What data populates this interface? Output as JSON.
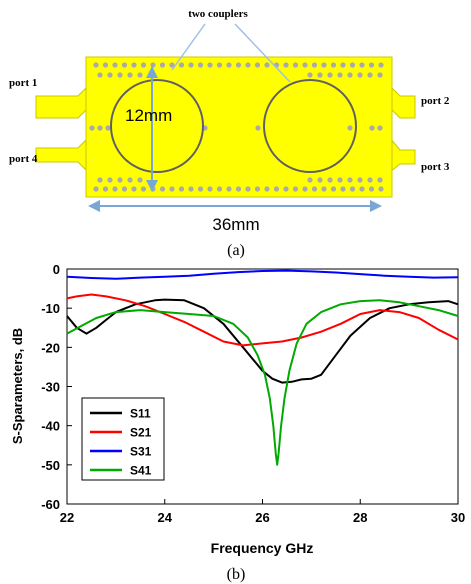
{
  "panel_a": {
    "caption": "(a)",
    "callout_label": "two couplers",
    "port_labels": {
      "port1": "port 1",
      "port2": "port 2",
      "port3": "port 3",
      "port4": "port 4"
    },
    "dim_diameter": "12mm",
    "dim_length": "36mm",
    "colors": {
      "board": "#ffff00",
      "board_edge": "#c8c800",
      "via": "#a9a9a9",
      "circle": "#606060",
      "arrow": "#7aa6d6",
      "callout": "#9fbfe6"
    }
  },
  "panel_b": {
    "caption": "(b)"
  },
  "chart_data": {
    "type": "line",
    "xlabel": "Frequency GHz",
    "ylabel": "S-Sparameters, dB",
    "xlim": [
      22,
      30
    ],
    "ylim": [
      -60,
      0
    ],
    "xticks": [
      22,
      24,
      26,
      28,
      30
    ],
    "yticks": [
      0,
      -10,
      -20,
      -30,
      -40,
      -50,
      -60
    ],
    "grid": false,
    "legend_position": "bottom-left",
    "series": [
      {
        "name": "S11",
        "color": "#000000",
        "x": [
          22,
          22.2,
          22.4,
          22.6,
          22.8,
          23,
          23.4,
          23.8,
          24,
          24.4,
          24.8,
          25.2,
          25.6,
          26,
          26.2,
          26.4,
          26.6,
          26.8,
          27,
          27.2,
          27.5,
          27.8,
          28.2,
          28.6,
          29,
          29.4,
          29.8,
          30
        ],
        "y": [
          -12,
          -15,
          -16.5,
          -15,
          -13,
          -11,
          -9,
          -8,
          -7.8,
          -8,
          -10,
          -14,
          -20,
          -26,
          -28,
          -29,
          -28.8,
          -28.2,
          -28,
          -27,
          -22,
          -17,
          -12.5,
          -10,
          -9,
          -8.5,
          -8.2,
          -9
        ]
      },
      {
        "name": "S21",
        "color": "#ff0000",
        "x": [
          22,
          22.2,
          22.5,
          22.8,
          23.2,
          23.6,
          24,
          24.4,
          24.8,
          25.2,
          25.6,
          26,
          26.4,
          26.8,
          27.2,
          27.6,
          28,
          28.4,
          28.8,
          29.2,
          29.6,
          30
        ],
        "y": [
          -7.5,
          -7,
          -6.5,
          -7,
          -8,
          -9.5,
          -11.5,
          -13.5,
          -16,
          -18.5,
          -19.5,
          -19,
          -18.5,
          -17.5,
          -16,
          -14,
          -11.5,
          -10.5,
          -11,
          -12.5,
          -15.5,
          -18
        ]
      },
      {
        "name": "S31",
        "color": "#0000ff",
        "x": [
          22,
          22.5,
          23,
          23.5,
          24,
          24.5,
          25,
          25.5,
          26,
          26.5,
          27,
          27.5,
          28,
          28.5,
          29,
          29.5,
          30
        ],
        "y": [
          -2,
          -2.3,
          -2.5,
          -2.2,
          -2,
          -1.7,
          -1.2,
          -0.8,
          -0.5,
          -0.4,
          -0.6,
          -0.9,
          -1.3,
          -1.7,
          -2,
          -2.2,
          -2.1
        ]
      },
      {
        "name": "S41",
        "color": "#00aa00",
        "x": [
          22,
          22.3,
          22.6,
          23,
          23.5,
          24,
          24.5,
          25,
          25.4,
          25.7,
          25.9,
          26.05,
          26.15,
          26.22,
          26.27,
          26.3,
          26.33,
          26.38,
          26.45,
          26.55,
          26.7,
          26.9,
          27.2,
          27.6,
          28,
          28.4,
          28.8,
          29.2,
          29.6,
          30
        ],
        "y": [
          -16.5,
          -14.5,
          -12.5,
          -11,
          -10.5,
          -11,
          -11.5,
          -12,
          -14,
          -17.5,
          -22,
          -27,
          -33,
          -40,
          -47,
          -50,
          -47,
          -40,
          -33,
          -26,
          -19,
          -14,
          -11,
          -9,
          -8.2,
          -8,
          -8.5,
          -9.5,
          -10.5,
          -12
        ]
      }
    ]
  }
}
